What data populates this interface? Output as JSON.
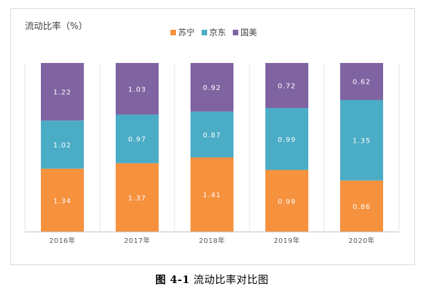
{
  "chart_data": {
    "type": "bar",
    "stacked": true,
    "title": "流动比率（%）",
    "categories": [
      "2016年",
      "2017年",
      "2018年",
      "2019年",
      "2020年"
    ],
    "series": [
      {
        "name": "苏宁",
        "color": "#f6913e",
        "values": [
          1.34,
          1.37,
          1.41,
          0.99,
          0.86
        ]
      },
      {
        "name": "京东",
        "color": "#4bacc6",
        "values": [
          1.02,
          0.97,
          0.87,
          0.99,
          1.35
        ]
      },
      {
        "name": "国美",
        "color": "#8064a2",
        "values": [
          1.22,
          1.03,
          0.92,
          0.72,
          0.62
        ]
      }
    ],
    "value_label_format": "2-decimal",
    "bars_normalized_to_full_height": true,
    "legend_position": "top",
    "grid": false
  },
  "caption": {
    "label": "图 4-1",
    "text": "流动比率对比图"
  }
}
